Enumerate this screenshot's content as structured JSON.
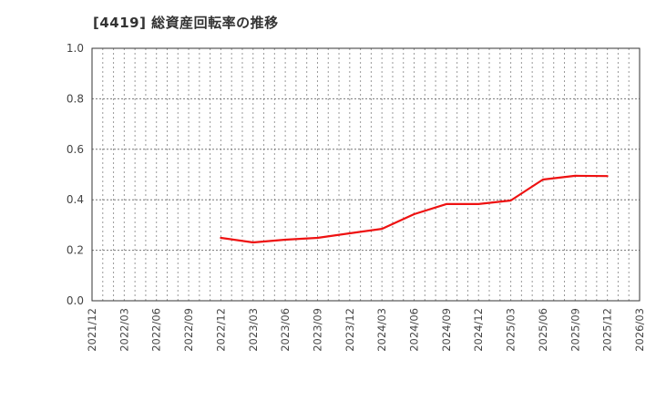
{
  "title": "[4419]  総資産回転率の推移",
  "colors": {
    "line": "#ee1111",
    "axis": "#333333",
    "grid": "#999999",
    "background": "#ffffff"
  },
  "chart_data": {
    "type": "line",
    "title": "[4419]  総資産回転率の推移",
    "xlabel": "",
    "ylabel": "",
    "ylim": [
      0.0,
      1.0
    ],
    "yticks": [
      "0.0",
      "0.2",
      "0.4",
      "0.6",
      "0.8",
      "1.0"
    ],
    "xlim": [
      "2021/12",
      "2026/03"
    ],
    "xticks": [
      "2021/12",
      "2022/03",
      "2022/06",
      "2022/09",
      "2022/12",
      "2023/03",
      "2023/06",
      "2023/09",
      "2023/12",
      "2024/03",
      "2024/06",
      "2024/09",
      "2024/12",
      "2025/03",
      "2025/06",
      "2025/09",
      "2025/12",
      "2026/03"
    ],
    "grid": true,
    "legend": null,
    "series": [
      {
        "name": "総資産回転率",
        "x": [
          "2022/12",
          "2023/03",
          "2023/06",
          "2023/09",
          "2023/12",
          "2024/03",
          "2024/06",
          "2024/09",
          "2024/12",
          "2025/03",
          "2025/06",
          "2025/09",
          "2025/12"
        ],
        "values": [
          0.249,
          0.231,
          0.242,
          0.249,
          0.267,
          0.285,
          0.343,
          0.383,
          0.383,
          0.397,
          0.48,
          0.495,
          0.494
        ]
      }
    ]
  }
}
